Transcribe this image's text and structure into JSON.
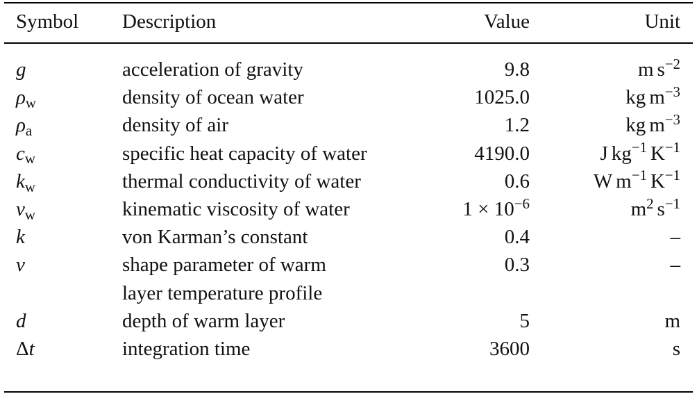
{
  "table": {
    "headers": {
      "symbol": "Symbol",
      "description": "Description",
      "value": "Value",
      "unit": "Unit"
    },
    "rows": [
      {
        "symbol": "g",
        "symbol_sub": "",
        "description": "acceleration of gravity",
        "value_main": "9.8",
        "value_sup": "",
        "unit_parts": [
          {
            "base": "m",
            "exp": ""
          },
          {
            "base": "s",
            "exp": "−2"
          }
        ]
      },
      {
        "symbol": "ρ",
        "symbol_sub": "w",
        "description": "density of ocean water",
        "value_main": "1025.0",
        "value_sup": "",
        "unit_parts": [
          {
            "base": "kg",
            "exp": ""
          },
          {
            "base": "m",
            "exp": "−3"
          }
        ]
      },
      {
        "symbol": "ρ",
        "symbol_sub": "a",
        "description": "density of air",
        "value_main": "1.2",
        "value_sup": "",
        "unit_parts": [
          {
            "base": "kg",
            "exp": ""
          },
          {
            "base": "m",
            "exp": "−3"
          }
        ]
      },
      {
        "symbol": "c",
        "symbol_sub": "w",
        "description": "specific heat capacity of water",
        "value_main": "4190.0",
        "value_sup": "",
        "unit_parts": [
          {
            "base": "J",
            "exp": ""
          },
          {
            "base": "kg",
            "exp": "−1"
          },
          {
            "base": "K",
            "exp": "−1"
          }
        ]
      },
      {
        "symbol": "k",
        "symbol_sub": "w",
        "description": "thermal conductivity of water",
        "value_main": "0.6",
        "value_sup": "",
        "unit_parts": [
          {
            "base": "W",
            "exp": ""
          },
          {
            "base": "m",
            "exp": "−1"
          },
          {
            "base": "K",
            "exp": "−1"
          }
        ]
      },
      {
        "symbol": "ν",
        "symbol_sub": "w",
        "description": "kinematic viscosity of water",
        "value_main": "1 × 10",
        "value_sup": "−6",
        "unit_parts": [
          {
            "base": "m",
            "exp": "2"
          },
          {
            "base": "s",
            "exp": "−1"
          }
        ]
      },
      {
        "symbol": "k",
        "symbol_sub": "",
        "description": "von Karman’s constant",
        "value_main": "0.4",
        "value_sup": "",
        "unit_parts": [
          {
            "base": "–",
            "exp": ""
          }
        ]
      },
      {
        "symbol": "ν",
        "symbol_sub": "",
        "description": "shape parameter of warm",
        "value_main": "0.3",
        "value_sup": "",
        "unit_parts": [
          {
            "base": "–",
            "exp": ""
          }
        ]
      },
      {
        "symbol": "",
        "symbol_sub": "",
        "description": "layer temperature profile",
        "value_main": "",
        "value_sup": "",
        "unit_parts": []
      },
      {
        "symbol": "d",
        "symbol_sub": "",
        "description": "depth of warm layer",
        "value_main": "5",
        "value_sup": "",
        "unit_parts": [
          {
            "base": "m",
            "exp": ""
          }
        ]
      },
      {
        "symbol": "Δt",
        "symbol_sub": "",
        "description": "integration time",
        "value_main": "3600",
        "value_sup": "",
        "unit_parts": [
          {
            "base": "s",
            "exp": ""
          }
        ]
      }
    ]
  }
}
